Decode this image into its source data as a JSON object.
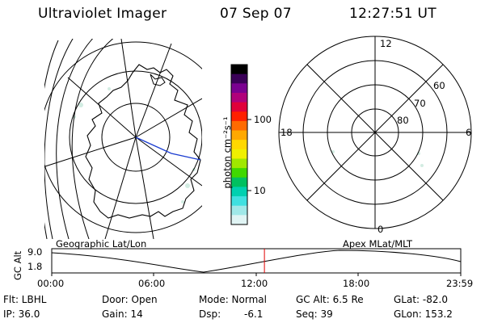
{
  "header": {
    "title": "Ultraviolet Imager",
    "date": "07 Sep 07",
    "time": "12:27:51 UT"
  },
  "geo_panel": {
    "label": "Geographic Lat/Lon"
  },
  "colorbar": {
    "label": "photon cm⁻²s⁻¹",
    "ticks": [
      "100",
      "10"
    ],
    "colors": [
      "#000000",
      "#3a0057",
      "#7a0090",
      "#b0007a",
      "#e0003a",
      "#ff2000",
      "#ff6a00",
      "#ffa800",
      "#ffd800",
      "#f0f000",
      "#a0e800",
      "#40d800",
      "#00c060",
      "#00d0b0",
      "#40e0e0",
      "#a0e8e8",
      "#e0f4f4"
    ]
  },
  "polar_panel": {
    "label": "Apex MLat/MLT",
    "mlt_labels": {
      "top": "12",
      "left": "18",
      "right": "6",
      "bottom": "0"
    },
    "lat_labels": [
      "60",
      "70",
      "80"
    ]
  },
  "timeline": {
    "ylabel": "GC Alt",
    "ytick_top": "9.0",
    "ytick_bottom": "1.8",
    "xticks": [
      "00:00",
      "06:00",
      "12:00",
      "18:00",
      "23:59"
    ],
    "marker_color": "#e00000",
    "marker_fraction": 0.52
  },
  "info": {
    "flt": "Flt: LBHL",
    "ip": "IP: 36.0",
    "door": "Door: Open",
    "gain": "Gain: 14",
    "mode": "Mode: Normal",
    "dsp": "Dsp:",
    "dsp_value": "-6.1",
    "gcalt": "GC Alt: 6.5 Re",
    "seq": "Seq: 39",
    "glat": "GLat: -82.0",
    "glon": "GLon: 153.2"
  }
}
